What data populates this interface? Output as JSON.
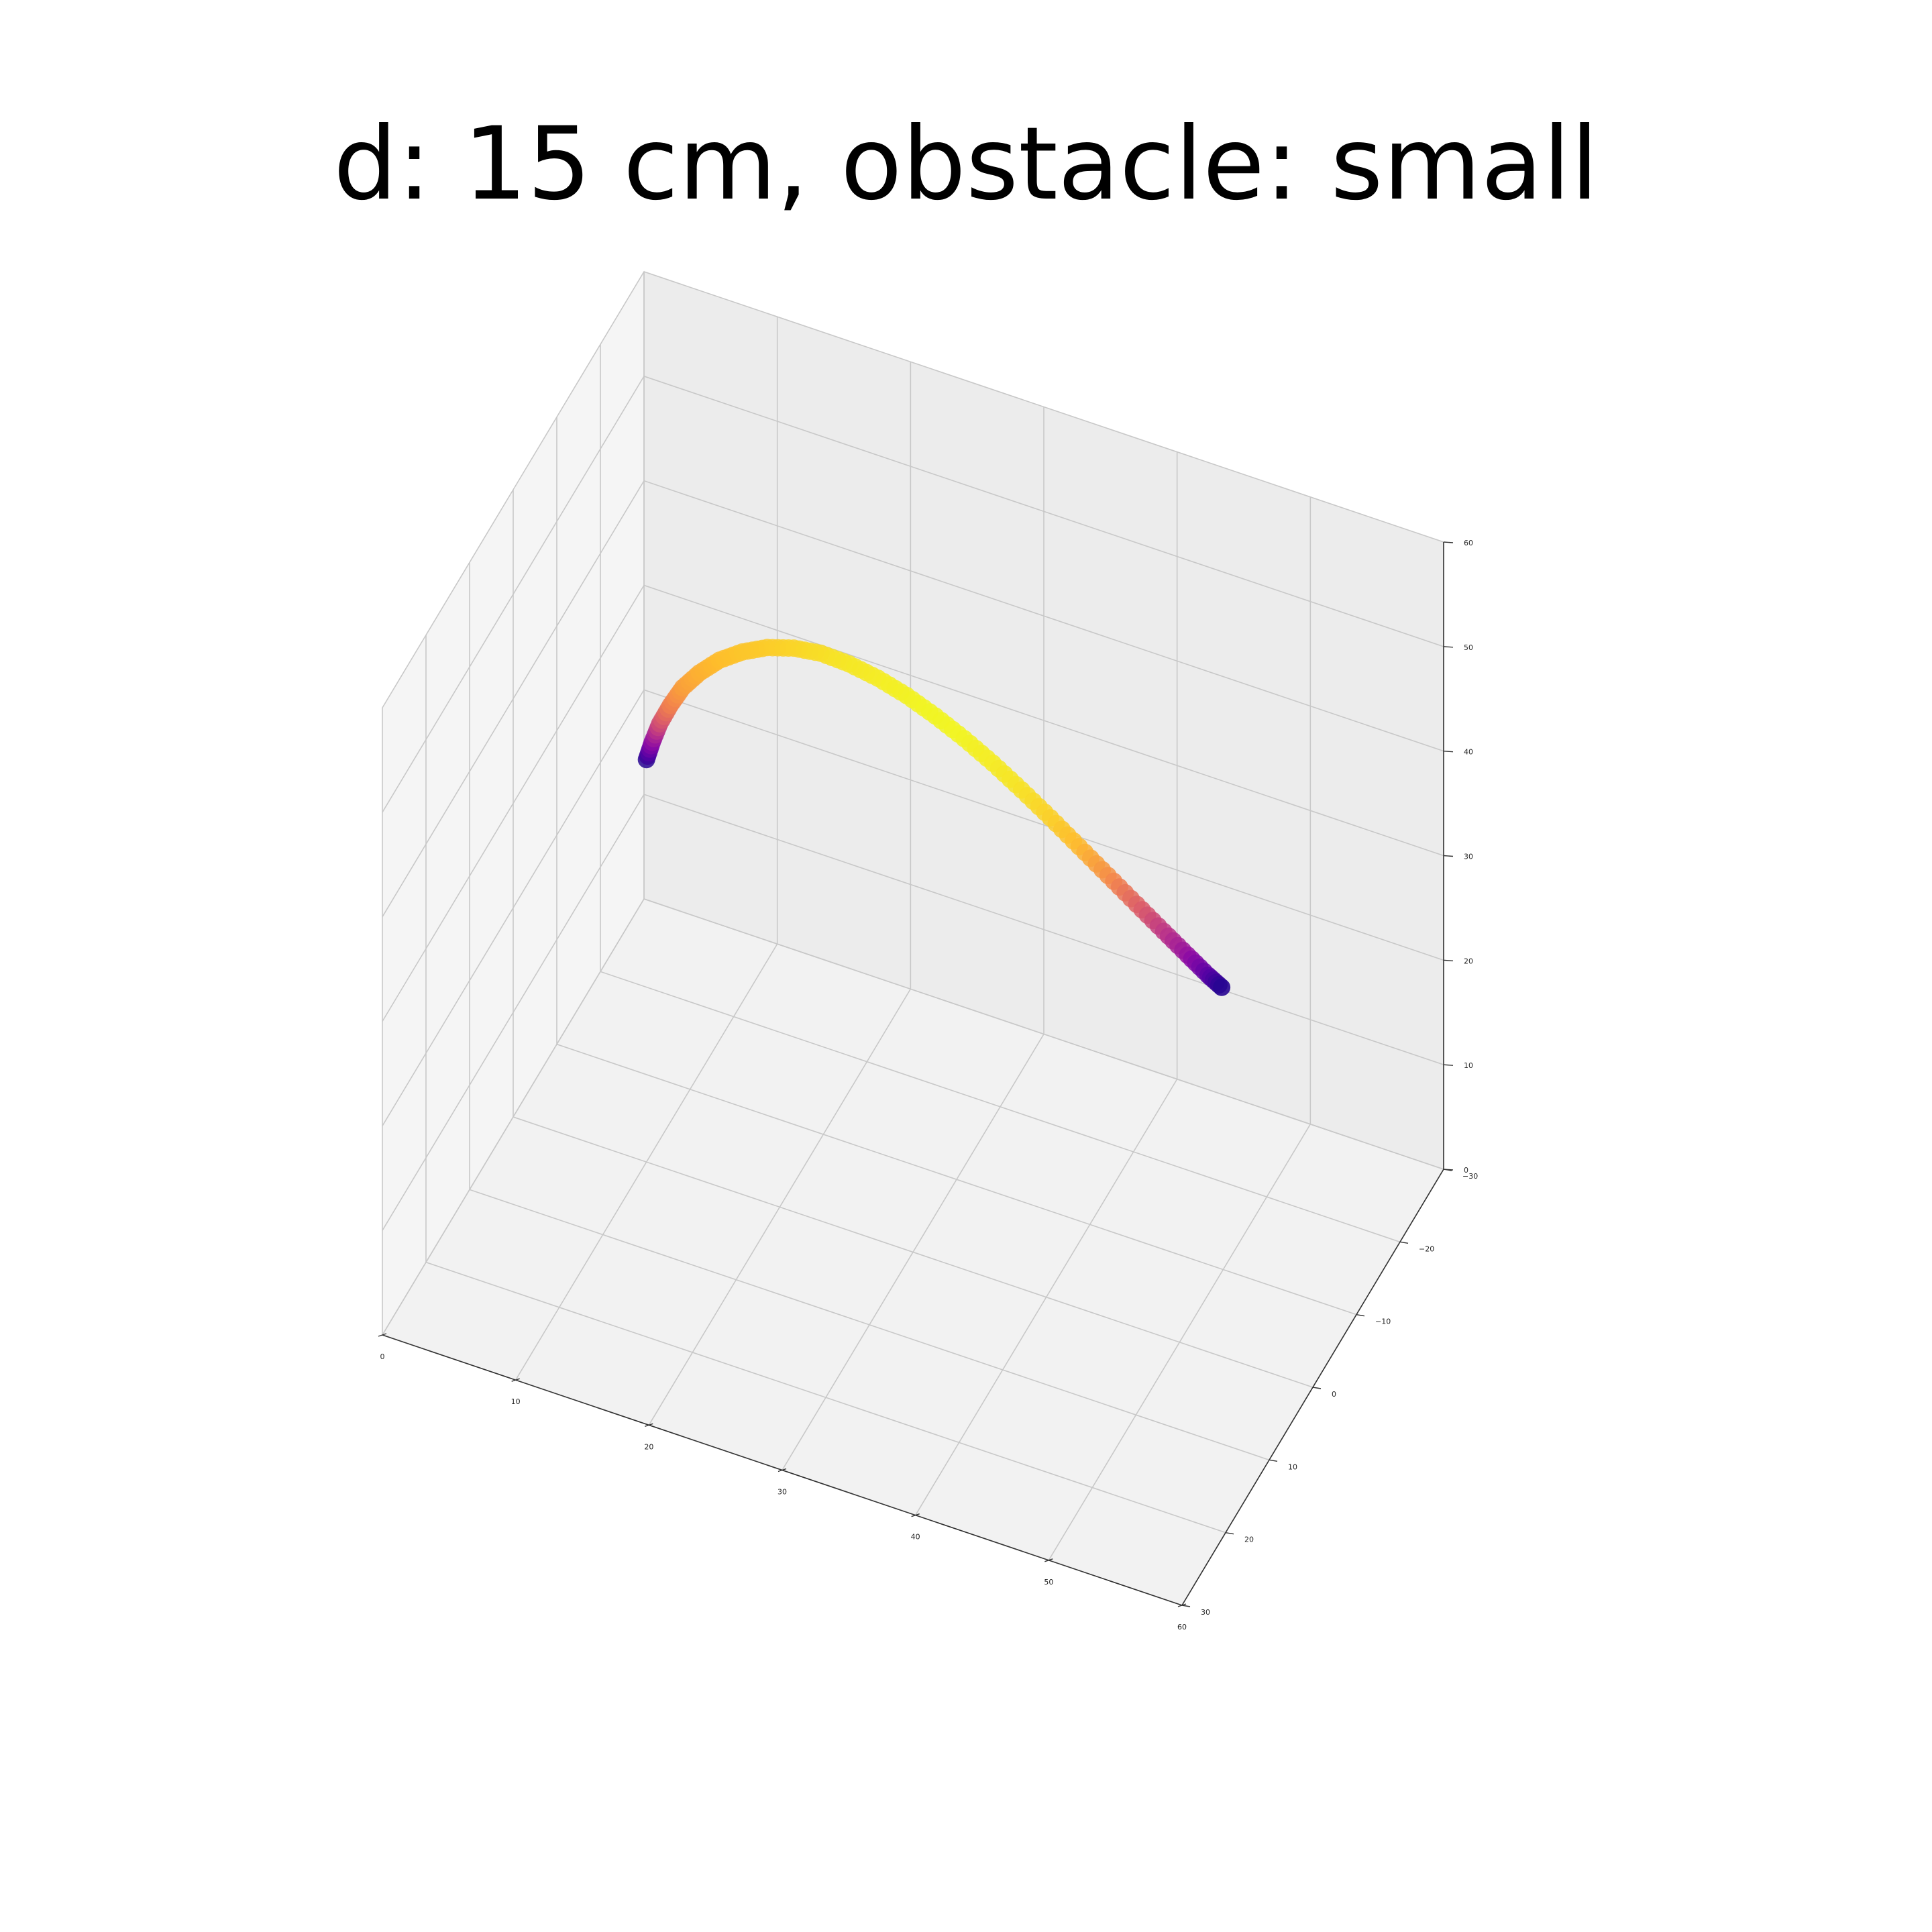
{
  "title": "d: 15 cm, obstacle: small",
  "chart_data": {
    "type": "scatter",
    "projection": "3d",
    "title": "d: 15 cm, obstacle: small",
    "xlabel": "",
    "ylabel": "",
    "zlabel": "",
    "xlim": [
      0,
      60
    ],
    "ylim": [
      -30,
      30
    ],
    "zlim": [
      0,
      60
    ],
    "x_ticks": [
      "0",
      "10",
      "20",
      "30",
      "40",
      "50",
      "60"
    ],
    "y_ticks": [
      "−30",
      "−20",
      "−10",
      "0",
      "10",
      "20",
      "30"
    ],
    "z_ticks": [
      "0",
      "10",
      "20",
      "30",
      "40",
      "50",
      "60"
    ],
    "grid": true,
    "colormap": "plasma",
    "color_encoding": "speed",
    "series": [
      {
        "points": [
          {
            "x": 10.0,
            "y": 0.0,
            "z": 38.5,
            "c": 0.05
          },
          {
            "x": 10.3,
            "y": -0.4,
            "z": 40.0,
            "c": 0.25
          },
          {
            "x": 10.7,
            "y": -0.9,
            "z": 41.6,
            "c": 0.45
          },
          {
            "x": 11.3,
            "y": -1.5,
            "z": 43.2,
            "c": 0.6
          },
          {
            "x": 12.0,
            "y": -2.2,
            "z": 44.7,
            "c": 0.68
          },
          {
            "x": 13.0,
            "y": -3.0,
            "z": 46.0,
            "c": 0.72
          },
          {
            "x": 14.2,
            "y": -3.9,
            "z": 47.1,
            "c": 0.75
          },
          {
            "x": 15.6,
            "y": -4.9,
            "z": 47.8,
            "c": 0.78
          },
          {
            "x": 17.1,
            "y": -6.0,
            "z": 48.1,
            "c": 0.8
          },
          {
            "x": 18.7,
            "y": -7.2,
            "z": 47.9,
            "c": 0.83
          },
          {
            "x": 20.3,
            "y": -8.5,
            "z": 47.2,
            "c": 0.86
          },
          {
            "x": 22.0,
            "y": -9.8,
            "z": 46.0,
            "c": 0.9
          },
          {
            "x": 23.7,
            "y": -11.2,
            "z": 44.4,
            "c": 0.93
          },
          {
            "x": 25.4,
            "y": -12.6,
            "z": 42.5,
            "c": 0.96
          },
          {
            "x": 27.1,
            "y": -14.0,
            "z": 40.3,
            "c": 0.98
          },
          {
            "x": 28.8,
            "y": -15.4,
            "z": 37.9,
            "c": 0.97
          },
          {
            "x": 30.5,
            "y": -16.8,
            "z": 35.3,
            "c": 0.93
          },
          {
            "x": 32.2,
            "y": -18.2,
            "z": 32.5,
            "c": 0.88
          },
          {
            "x": 33.9,
            "y": -19.6,
            "z": 29.6,
            "c": 0.82
          },
          {
            "x": 35.6,
            "y": -21.0,
            "z": 26.6,
            "c": 0.74
          },
          {
            "x": 37.3,
            "y": -22.4,
            "z": 23.6,
            "c": 0.65
          },
          {
            "x": 39.0,
            "y": -23.8,
            "z": 20.6,
            "c": 0.52
          },
          {
            "x": 40.6,
            "y": -25.1,
            "z": 17.8,
            "c": 0.4
          },
          {
            "x": 42.0,
            "y": -26.3,
            "z": 15.3,
            "c": 0.28
          },
          {
            "x": 43.2,
            "y": -27.3,
            "z": 13.2,
            "c": 0.15
          },
          {
            "x": 44.0,
            "y": -28.0,
            "z": 11.9,
            "c": 0.05
          }
        ]
      }
    ]
  }
}
